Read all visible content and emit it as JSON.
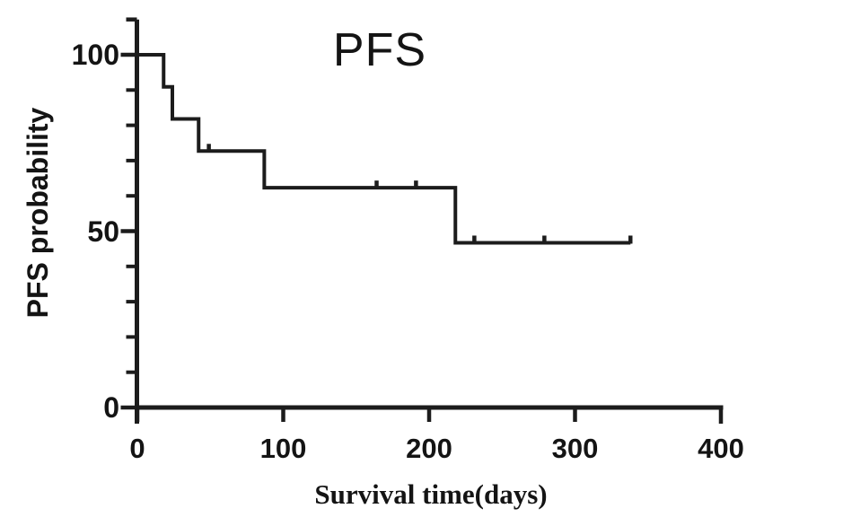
{
  "chart_data": {
    "type": "line",
    "subtype": "kaplan-meier-step",
    "title": "PFS",
    "xlabel": "Survival time(days)",
    "ylabel": "PFS probability",
    "xlim": [
      0,
      400
    ],
    "ylim": [
      0,
      110
    ],
    "x_ticks": [
      0,
      100,
      200,
      300,
      400
    ],
    "y_ticks_major": [
      0,
      50,
      100
    ],
    "y_ticks_minor": [
      10,
      20,
      30,
      40,
      60,
      70,
      80,
      90
    ],
    "grid": false,
    "legend": "none",
    "line_color": "#1c1c1c",
    "series": [
      {
        "name": "PFS",
        "start": {
          "day": 0,
          "survival": 100
        },
        "events": [
          {
            "day": 18,
            "survival": 90.9
          },
          {
            "day": 24,
            "survival": 81.8
          },
          {
            "day": 42,
            "survival": 72.7
          },
          {
            "day": 87,
            "survival": 62.3
          },
          {
            "day": 218,
            "survival": 46.7
          }
        ],
        "censors": [
          {
            "day": 49,
            "survival": 72.7
          },
          {
            "day": 164,
            "survival": 62.3
          },
          {
            "day": 191,
            "survival": 62.3
          },
          {
            "day": 231,
            "survival": 46.7
          },
          {
            "day": 279,
            "survival": 46.7
          },
          {
            "day": 338,
            "survival": 46.7
          }
        ],
        "curve_end_day": 338
      }
    ]
  }
}
